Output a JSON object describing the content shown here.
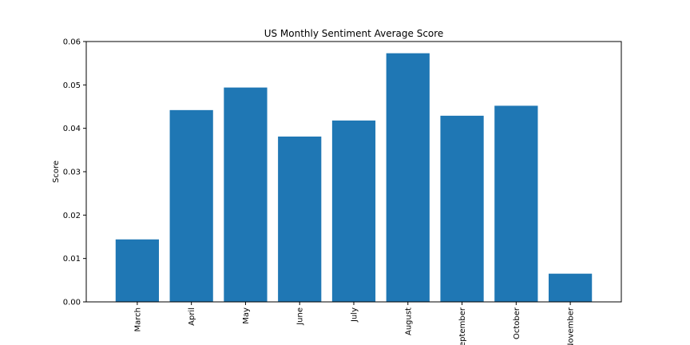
{
  "chart_data": {
    "type": "bar",
    "title": "US Monthly Sentiment Average Score",
    "xlabel": "",
    "ylabel": "Score",
    "categories": [
      "March",
      "April",
      "May",
      "June",
      "July",
      "August",
      "September",
      "October",
      "November"
    ],
    "values": [
      0.0144,
      0.0442,
      0.0494,
      0.0381,
      0.0418,
      0.0573,
      0.0429,
      0.0452,
      0.0065
    ],
    "ylim": [
      0,
      0.06
    ],
    "yticks": [
      "0.00",
      "0.01",
      "0.02",
      "0.03",
      "0.04",
      "0.05",
      "0.06"
    ],
    "grid": false,
    "bar_color": "#1f77b4"
  }
}
